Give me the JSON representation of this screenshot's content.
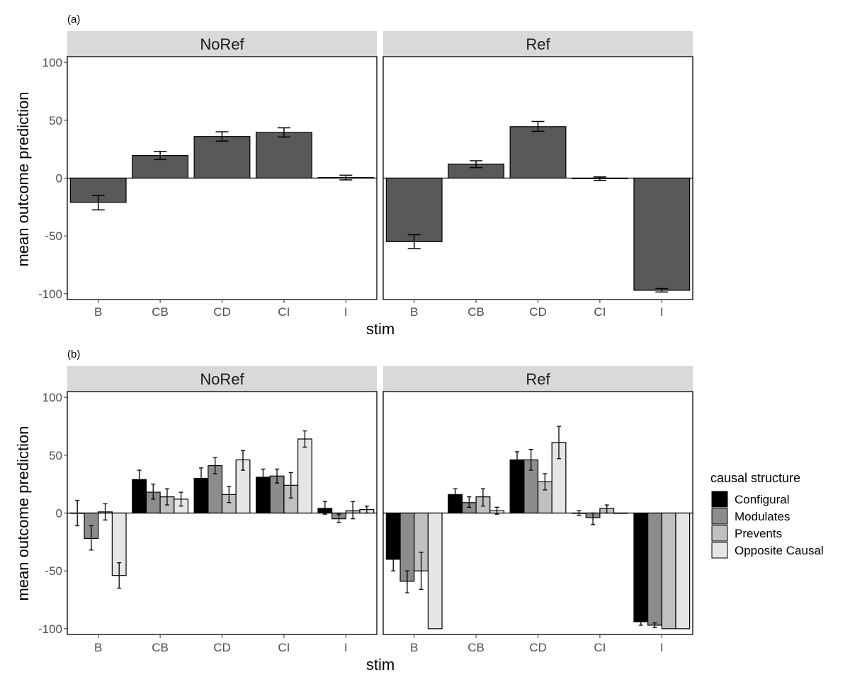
{
  "chart_data": [
    {
      "type": "bar",
      "panel_label": "(a)",
      "xlabel": "stim",
      "ylabel": "mean outcome prediction",
      "ylim": [
        -105,
        105
      ],
      "yticks": [
        -100,
        -50,
        0,
        50,
        100
      ],
      "categories": [
        "B",
        "CB",
        "CD",
        "CI",
        "I"
      ],
      "facets": [
        {
          "name": "NoRef",
          "values": [
            -21,
            19.5,
            36,
            39.5,
            0.5
          ],
          "err_low": [
            -27.5,
            16,
            32,
            35.5,
            -1.5
          ],
          "err_high": [
            -15,
            23,
            40,
            43.5,
            2.5
          ]
        },
        {
          "name": "Ref",
          "values": [
            -55,
            12,
            44.5,
            -0.5,
            -97
          ],
          "err_low": [
            -61,
            9,
            40.5,
            -2,
            -98.5
          ],
          "err_high": [
            -49,
            15,
            49,
            1,
            -95.5
          ]
        }
      ],
      "colors": {
        "bar": "#595959"
      }
    },
    {
      "type": "bar",
      "panel_label": "(b)",
      "xlabel": "stim",
      "ylabel": "mean outcome prediction",
      "ylim": [
        -105,
        105
      ],
      "yticks": [
        -100,
        -50,
        0,
        50,
        100
      ],
      "categories": [
        "B",
        "CB",
        "CD",
        "CI",
        "I"
      ],
      "legend": {
        "title": "causal structure",
        "position": "right",
        "entries": [
          "Configural",
          "Modulates",
          "Prevents",
          "Opposite Causal"
        ],
        "colors": [
          "#000000",
          "#8c8c8c",
          "#c0c0c0",
          "#e6e6e6"
        ]
      },
      "facets": [
        {
          "name": "NoRef",
          "series": [
            {
              "name": "Configural",
              "values": [
                0,
                29,
                30,
                31,
                4
              ],
              "err_low": [
                -11,
                22,
                21,
                24,
                -1
              ],
              "err_high": [
                11,
                37,
                39,
                38,
                10
              ]
            },
            {
              "name": "Modulates",
              "values": [
                -22,
                18,
                41,
                32,
                -5
              ],
              "err_low": [
                -32,
                12,
                34,
                26,
                -8
              ],
              "err_high": [
                -11,
                25,
                48,
                38,
                -1
              ]
            },
            {
              "name": "Prevents",
              "values": [
                1,
                14,
                16,
                24,
                2
              ],
              "err_low": [
                -6,
                7,
                9,
                13,
                -5
              ],
              "err_high": [
                8,
                21,
                23,
                35,
                10
              ]
            },
            {
              "name": "Opposite Causal",
              "values": [
                -54,
                12,
                46,
                64,
                3
              ],
              "err_low": [
                -65,
                6,
                37,
                57,
                0
              ],
              "err_high": [
                -43,
                18,
                54,
                71,
                6
              ]
            }
          ]
        },
        {
          "name": "Ref",
          "series": [
            {
              "name": "Configural",
              "values": [
                -40,
                16,
                46,
                0,
                -94
              ],
              "err_low": [
                -50,
                11,
                40,
                -2,
                -97
              ],
              "err_high": [
                -31,
                21,
                53,
                2,
                -91
              ]
            },
            {
              "name": "Modulates",
              "values": [
                -59,
                9,
                46,
                -4,
                -97
              ],
              "err_low": [
                -69,
                5,
                37,
                -10,
                -99
              ],
              "err_high": [
                -50,
                14,
                55,
                0,
                -95
              ]
            },
            {
              "name": "Prevents",
              "values": [
                -50,
                14,
                27,
                4,
                -100
              ],
              "err_low": [
                -66,
                6,
                20,
                0,
                -100
              ],
              "err_high": [
                -34,
                21,
                34,
                7,
                -100
              ]
            },
            {
              "name": "Opposite Causal",
              "values": [
                -100,
                2,
                61,
                0,
                -100
              ],
              "err_low": [
                -100,
                -1,
                47,
                0,
                -100
              ],
              "err_high": [
                -100,
                5,
                75,
                0,
                -100
              ]
            }
          ]
        }
      ]
    }
  ]
}
